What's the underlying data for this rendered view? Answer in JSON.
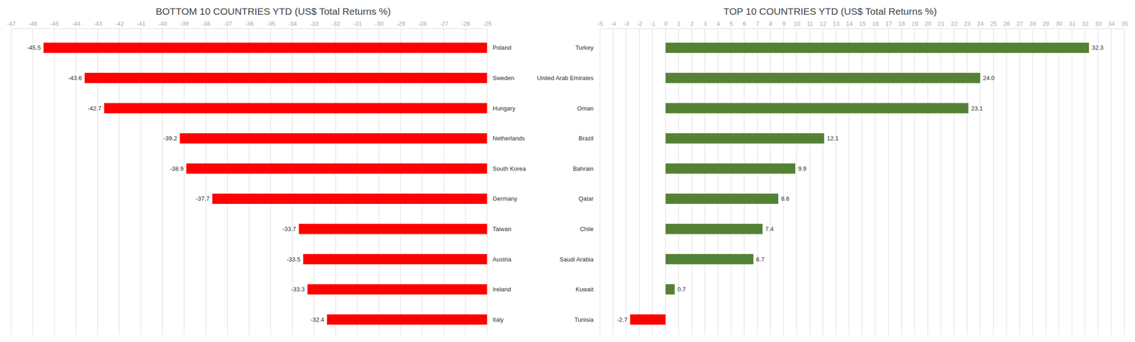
{
  "chart_data": [
    {
      "type": "bar",
      "orientation": "horizontal",
      "title": "BOTTOM 10 COUNTRIES YTD (US$ Total Returns %)",
      "categories": [
        "Poland",
        "Sweden",
        "Hungary",
        "Netherlands",
        "South Korea",
        "Germany",
        "Taiwan",
        "Austria",
        "Ireland",
        "Italy"
      ],
      "values": [
        -45.5,
        -43.6,
        -42.7,
        -39.2,
        -38.9,
        -37.7,
        -33.7,
        -33.5,
        -33.3,
        -32.4
      ],
      "color": "#ff0000",
      "xlim": [
        -47,
        -25
      ],
      "xticks": [
        -47,
        -46,
        -45,
        -44,
        -43,
        -42,
        -41,
        -40,
        -39,
        -38,
        -37,
        -36,
        -35,
        -34,
        -33,
        -32,
        -31,
        -30,
        -29,
        -28,
        -27,
        -26,
        -25
      ],
      "grid": true,
      "data_labels": true
    },
    {
      "type": "bar",
      "orientation": "horizontal",
      "title": "TOP 10 COUNTRIES YTD (US$ Total Returns %)",
      "categories": [
        "Turkey",
        "United Arab Emirates",
        "Oman",
        "Brazil",
        "Bahrain",
        "Qatar",
        "Chile",
        "Saudi Arabia",
        "Kuwait",
        "Tunisia"
      ],
      "values": [
        32.3,
        24.0,
        23.1,
        12.1,
        9.9,
        8.6,
        7.4,
        6.7,
        0.7,
        -2.7
      ],
      "value_labels": [
        "32.3",
        "24.0",
        "23.1",
        "12.1",
        "9.9",
        "8.6",
        "7.4",
        "6.7",
        "0.7",
        "-2.7"
      ],
      "colors": [
        "#548235",
        "#548235",
        "#548235",
        "#548235",
        "#548235",
        "#548235",
        "#548235",
        "#548235",
        "#548235",
        "#ff0000"
      ],
      "xlim": [
        -5,
        35
      ],
      "xticks": [
        -5,
        -4,
        -3,
        -2,
        -1,
        0,
        1,
        2,
        3,
        4,
        5,
        6,
        7,
        8,
        9,
        10,
        11,
        12,
        13,
        14,
        15,
        16,
        17,
        18,
        19,
        20,
        21,
        22,
        23,
        24,
        25,
        26,
        27,
        28,
        29,
        30,
        31,
        32,
        33,
        34,
        35
      ],
      "grid": true,
      "data_labels": true
    }
  ]
}
